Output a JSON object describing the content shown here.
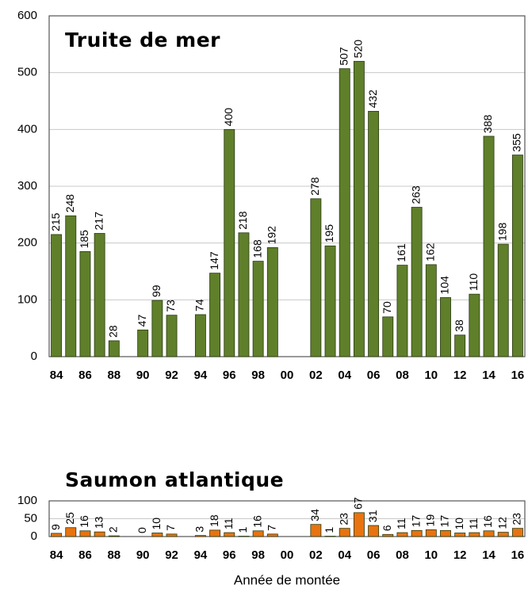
{
  "chart_data": [
    {
      "type": "bar",
      "title": "Truite de  mer",
      "title_color": "#6b8e23",
      "color": "#5f7f2b",
      "categories": [
        "84",
        null,
        "86",
        null,
        "88",
        null,
        "90",
        null,
        "92",
        null,
        "94",
        null,
        "96",
        null,
        "98",
        null,
        "00",
        null,
        "02",
        null,
        "04",
        null,
        "06",
        null,
        "08",
        null,
        "10",
        null,
        "12",
        null,
        "14",
        null,
        "16"
      ],
      "values": [
        215,
        248,
        185,
        217,
        28,
        null,
        47,
        99,
        73,
        null,
        74,
        147,
        400,
        218,
        168,
        192,
        null,
        null,
        278,
        195,
        507,
        520,
        432,
        70,
        161,
        263,
        162,
        104,
        38,
        110,
        388,
        198,
        355
      ],
      "ylim": [
        0,
        600
      ],
      "yticks": [
        0,
        100,
        200,
        300,
        400,
        500,
        600
      ],
      "grid": true
    },
    {
      "type": "bar",
      "title": "Saumon atlantique",
      "title_color": "#e46c0a",
      "color": "#e8730f",
      "categories": [
        "84",
        null,
        "86",
        null,
        "88",
        null,
        "90",
        null,
        "92",
        null,
        "94",
        null,
        "96",
        null,
        "98",
        null,
        "00",
        null,
        "02",
        null,
        "04",
        null,
        "06",
        null,
        "08",
        null,
        "10",
        null,
        "12",
        null,
        "14",
        null,
        "16"
      ],
      "values": [
        9,
        25,
        16,
        13,
        2,
        null,
        0,
        10,
        7,
        null,
        3,
        18,
        11,
        1,
        16,
        7,
        null,
        null,
        34,
        1,
        23,
        67,
        31,
        6,
        11,
        17,
        19,
        17,
        10,
        11,
        16,
        12,
        23
      ],
      "ylim": [
        0,
        100
      ],
      "yticks": [
        0,
        50,
        100
      ],
      "grid": true,
      "xlabel": "Année de montée"
    }
  ]
}
